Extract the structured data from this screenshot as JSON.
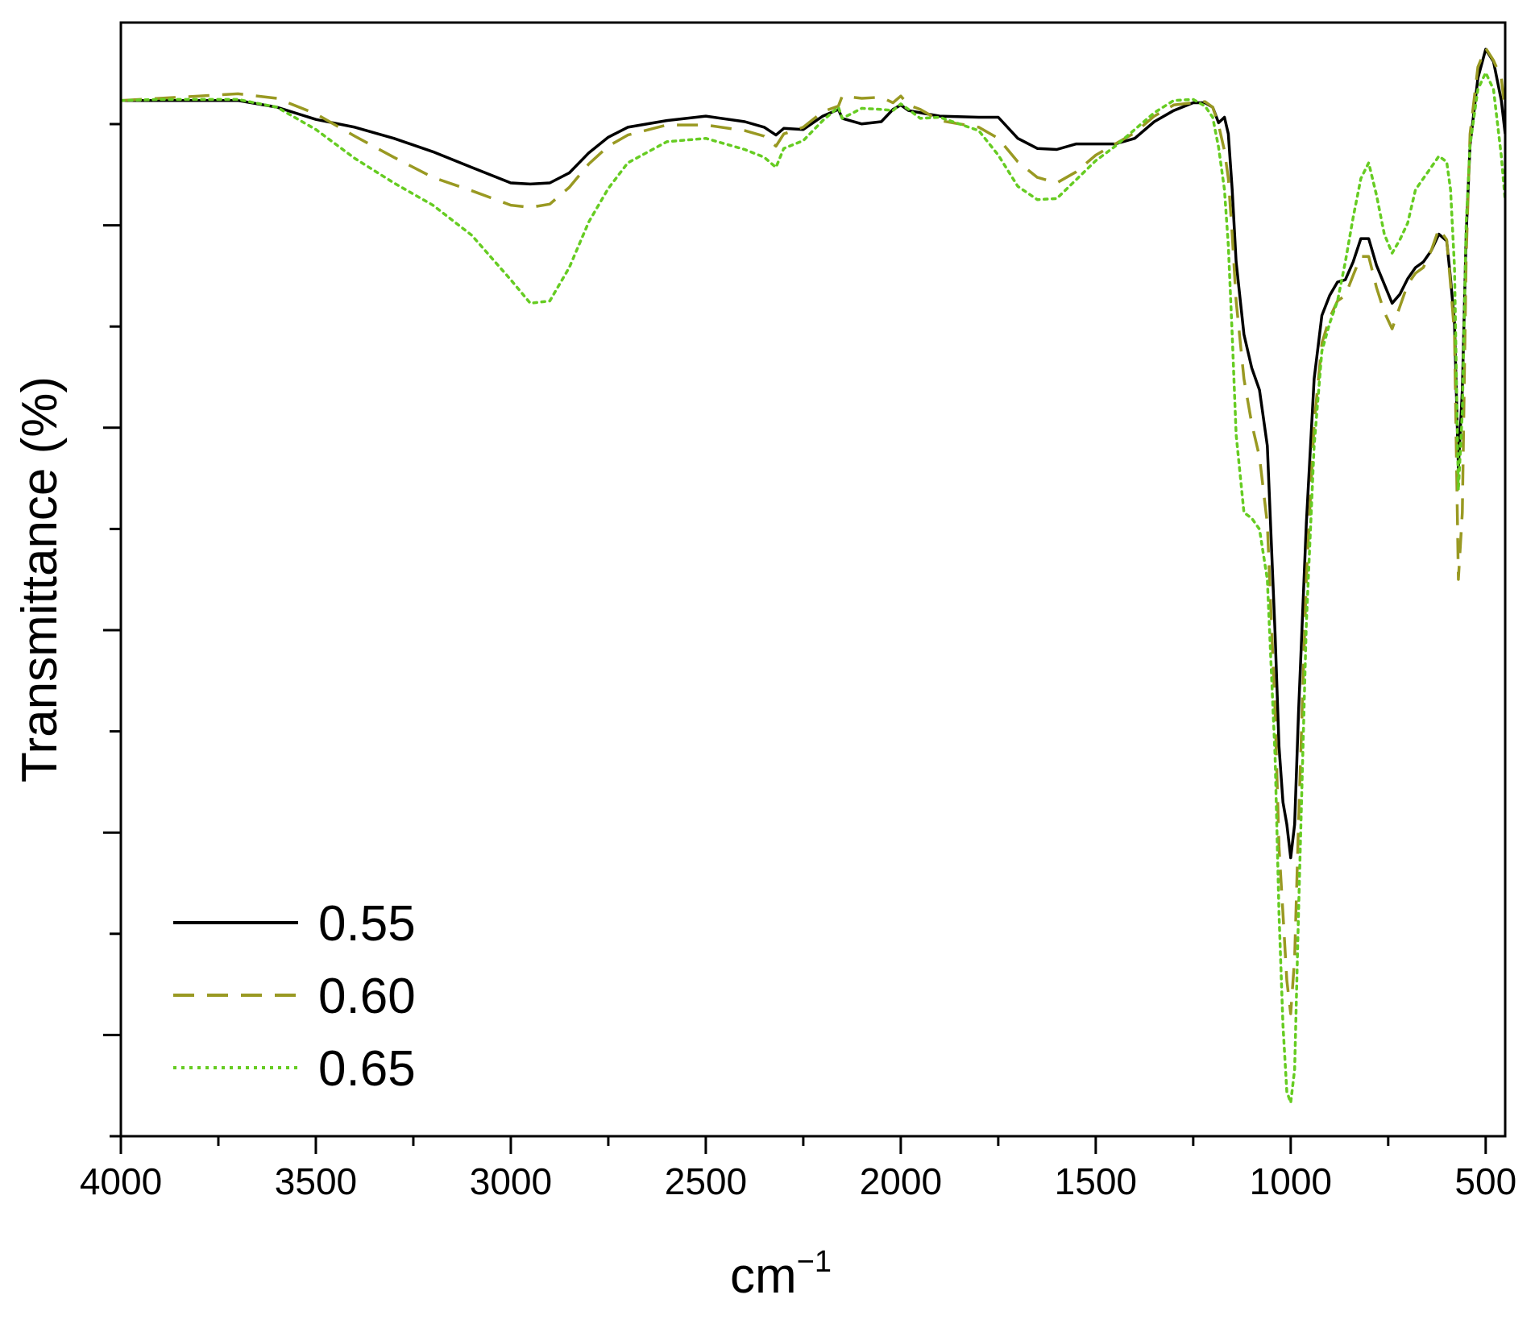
{
  "chart_data": {
    "type": "line",
    "title": "",
    "xlabel": "cm",
    "xlabel_superscript": "−1",
    "ylabel": "Transmittance (%)",
    "x_reversed": true,
    "xlim": [
      4000,
      450
    ],
    "ylim": [
      0,
      100
    ],
    "x_ticks": [
      4000,
      3500,
      3000,
      2500,
      2000,
      1500,
      1000,
      500
    ],
    "x_tick_labels": [
      "4000",
      "3500",
      "3000",
      "2500",
      "2000",
      "1500",
      "1000",
      "500"
    ],
    "x_minor_ticks": [
      3750,
      3250,
      2750,
      2250,
      1750,
      1250,
      750
    ],
    "y_ticks_count": 10,
    "y_tick_labels_shown": false,
    "grid": false,
    "legend": {
      "position": "bottom-left"
    },
    "series": [
      {
        "name": "0.55",
        "color": "#000000",
        "dash": "solid",
        "x": [
          4000,
          3900,
          3800,
          3700,
          3600,
          3500,
          3400,
          3300,
          3200,
          3100,
          3000,
          2950,
          2900,
          2850,
          2800,
          2750,
          2700,
          2600,
          2500,
          2400,
          2350,
          2320,
          2300,
          2250,
          2200,
          2160,
          2150,
          2100,
          2050,
          2020,
          2000,
          1980,
          1950,
          1900,
          1800,
          1750,
          1700,
          1650,
          1600,
          1550,
          1500,
          1450,
          1400,
          1350,
          1300,
          1250,
          1220,
          1200,
          1185,
          1170,
          1160,
          1150,
          1140,
          1120,
          1100,
          1080,
          1060,
          1040,
          1030,
          1020,
          1010,
          1000,
          990,
          980,
          960,
          940,
          920,
          900,
          880,
          860,
          840,
          820,
          800,
          780,
          760,
          740,
          720,
          700,
          680,
          660,
          640,
          620,
          600,
          590,
          580,
          570,
          560,
          550,
          540,
          520,
          500,
          480,
          460,
          450
        ],
        "y": [
          93,
          93,
          93,
          93,
          92.4,
          91.3,
          90.6,
          89.6,
          88.4,
          87,
          85.6,
          85.5,
          85.6,
          86.5,
          88.3,
          89.7,
          90.6,
          91.2,
          91.6,
          91.1,
          90.6,
          89.9,
          90.5,
          90.4,
          91.6,
          92.2,
          91.4,
          90.9,
          91.1,
          92.2,
          92.6,
          92.1,
          91.9,
          91.6,
          91.5,
          91.5,
          89.6,
          88.7,
          88.6,
          89.1,
          89.1,
          89.1,
          89.6,
          91.1,
          92.1,
          92.8,
          92.8,
          92.4,
          91,
          91.5,
          90,
          85,
          78.5,
          72,
          69,
          67,
          62,
          45,
          35,
          30,
          28,
          25,
          28,
          38,
          55,
          68,
          73.7,
          75.5,
          76.7,
          76.9,
          78.5,
          80.6,
          80.6,
          78.2,
          76.5,
          74.8,
          75.6,
          77,
          78,
          78.5,
          79.5,
          81,
          80.4,
          77,
          73,
          60,
          67,
          81,
          89,
          95,
          97.6,
          96.5,
          93,
          90
        ]
      },
      {
        "name": "0.60",
        "color": "#999922",
        "dash": "dashed",
        "x": [
          4000,
          3900,
          3800,
          3700,
          3600,
          3500,
          3400,
          3300,
          3200,
          3100,
          3000,
          2950,
          2900,
          2850,
          2800,
          2750,
          2700,
          2600,
          2500,
          2400,
          2350,
          2320,
          2300,
          2250,
          2200,
          2160,
          2150,
          2100,
          2050,
          2020,
          2000,
          1980,
          1950,
          1900,
          1800,
          1750,
          1700,
          1650,
          1600,
          1550,
          1500,
          1450,
          1400,
          1350,
          1300,
          1250,
          1220,
          1200,
          1185,
          1170,
          1160,
          1150,
          1140,
          1120,
          1100,
          1080,
          1060,
          1040,
          1030,
          1020,
          1010,
          1000,
          990,
          980,
          960,
          940,
          920,
          900,
          880,
          860,
          840,
          820,
          800,
          780,
          760,
          740,
          720,
          700,
          680,
          660,
          640,
          620,
          600,
          590,
          580,
          570,
          560,
          550,
          540,
          520,
          500,
          480,
          460,
          450
        ],
        "y": [
          93,
          93.2,
          93.4,
          93.6,
          93.2,
          91.8,
          89.8,
          87.9,
          86.1,
          84.9,
          83.6,
          83.4,
          83.7,
          85.2,
          87.3,
          88.9,
          89.9,
          90.8,
          90.8,
          90.3,
          89.8,
          88.9,
          90,
          90.6,
          92,
          92.5,
          93.4,
          93.2,
          93.3,
          92.8,
          93.4,
          92.6,
          92.2,
          91.2,
          90.6,
          89.6,
          87.5,
          86.1,
          85.6,
          86.6,
          88.1,
          89.1,
          90.1,
          91.6,
          92.6,
          92.8,
          92.9,
          92.4,
          90.8,
          88.5,
          86,
          81,
          75,
          68,
          64,
          61,
          55,
          38,
          26,
          20,
          14,
          11,
          16,
          28,
          50,
          64,
          71.2,
          73.5,
          75,
          75.5,
          77.3,
          79,
          79,
          76.2,
          74,
          72.5,
          74.5,
          76.5,
          77.5,
          78,
          79.5,
          81.5,
          80.5,
          76.5,
          72,
          50,
          56,
          79,
          90,
          96,
          97.7,
          96.6,
          95,
          92
        ]
      },
      {
        "name": "0.65",
        "color": "#66cc22",
        "dash": "dotted",
        "x": [
          4000,
          3900,
          3800,
          3700,
          3600,
          3500,
          3400,
          3300,
          3200,
          3100,
          3000,
          2950,
          2900,
          2850,
          2800,
          2750,
          2700,
          2600,
          2500,
          2400,
          2350,
          2320,
          2300,
          2250,
          2200,
          2160,
          2150,
          2100,
          2050,
          2020,
          2000,
          1980,
          1950,
          1900,
          1800,
          1750,
          1700,
          1650,
          1600,
          1550,
          1500,
          1450,
          1400,
          1350,
          1300,
          1250,
          1220,
          1200,
          1185,
          1170,
          1160,
          1150,
          1140,
          1120,
          1100,
          1080,
          1060,
          1040,
          1030,
          1020,
          1010,
          1000,
          990,
          980,
          960,
          940,
          920,
          900,
          880,
          860,
          840,
          820,
          800,
          780,
          760,
          740,
          720,
          700,
          680,
          660,
          640,
          620,
          600,
          590,
          580,
          570,
          560,
          550,
          540,
          520,
          500,
          480,
          460,
          450
        ],
        "y": [
          93,
          93.1,
          93.1,
          93.1,
          92.4,
          90.4,
          87.8,
          85.6,
          83.6,
          80.9,
          76.9,
          74.8,
          75,
          78,
          82.1,
          85.1,
          87.4,
          89.3,
          89.6,
          88.6,
          87.9,
          87,
          88.7,
          89.4,
          91.2,
          92.4,
          91.4,
          92.3,
          92.2,
          92.1,
          92.7,
          92.2,
          91.4,
          91.5,
          90.3,
          88.1,
          85.3,
          84.1,
          84.2,
          85.9,
          87.6,
          88.9,
          90.4,
          91.9,
          93,
          93.1,
          92.5,
          91.5,
          88.8,
          85,
          80,
          72,
          63,
          56,
          55.5,
          54.5,
          50,
          34,
          20,
          10,
          4,
          3,
          6,
          20,
          46,
          62,
          70.5,
          73,
          75,
          78.5,
          82.5,
          86,
          87.4,
          84.5,
          81,
          79.3,
          80.5,
          82,
          85,
          86,
          87,
          88,
          87.5,
          85,
          78,
          58,
          65,
          82,
          89,
          94,
          95.5,
          94,
          88,
          84
        ]
      }
    ]
  }
}
